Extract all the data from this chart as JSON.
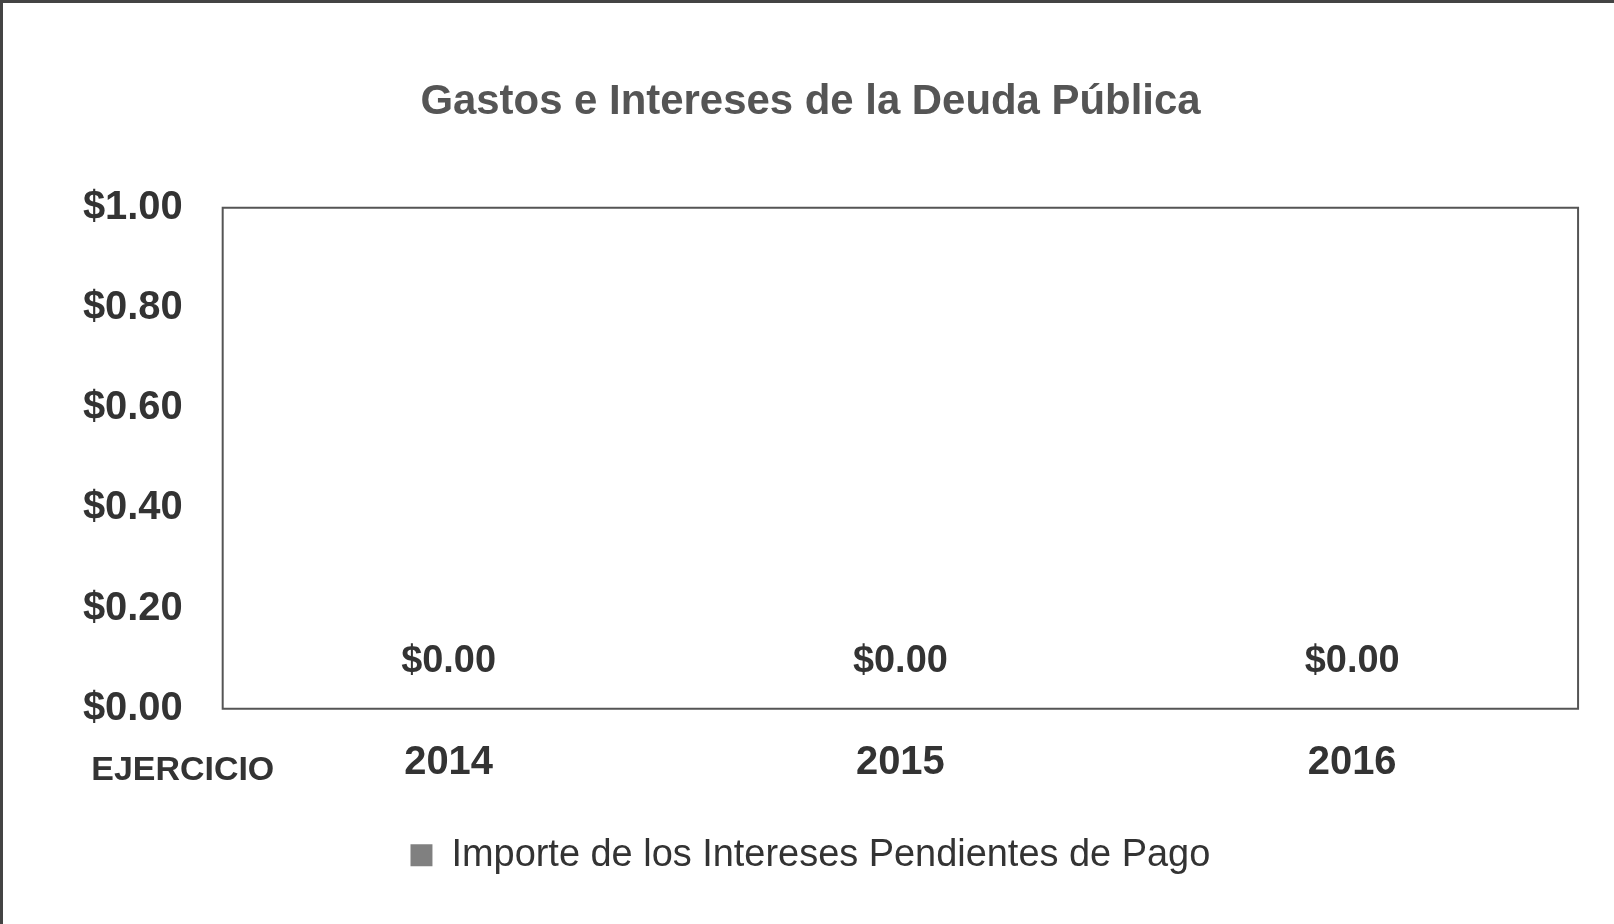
{
  "chart_data": {
    "type": "bar",
    "title": "Gastos e Intereses de la Deuda Pública",
    "xlabel": "EJERCICIO",
    "categories": [
      "2014",
      "2015",
      "2016"
    ],
    "series": [
      {
        "name": "Importe de los Intereses Pendientes de Pago",
        "color": "#808080",
        "values": [
          0,
          0,
          0
        ],
        "value_labels": [
          "$0.00",
          "$0.00",
          "$0.00"
        ]
      }
    ],
    "ylim": [
      0,
      1
    ],
    "yticks": [
      {
        "value": 0,
        "label": "$0.00"
      },
      {
        "value": 0.2,
        "label": "$0.20"
      },
      {
        "value": 0.4,
        "label": "$0.40"
      },
      {
        "value": 0.6,
        "label": "$0.60"
      },
      {
        "value": 0.8,
        "label": "$0.80"
      },
      {
        "value": 1,
        "label": "$1.00"
      }
    ],
    "grid": false,
    "legend": "bottom"
  }
}
